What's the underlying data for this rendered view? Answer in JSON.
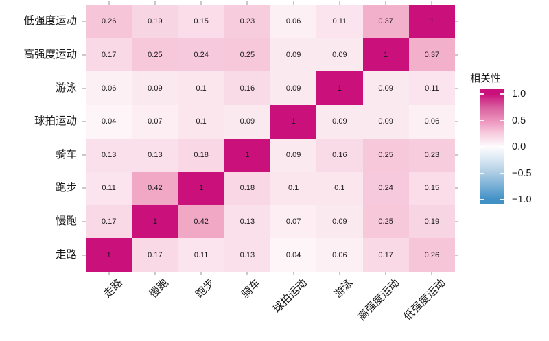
{
  "chart_data": {
    "type": "heatmap",
    "title": "",
    "x_categories": [
      "走路",
      "慢跑",
      "跑步",
      "骑车",
      "球拍运动",
      "游泳",
      "高强度运动",
      "低强度运动"
    ],
    "y_categories": [
      "低强度运动",
      "高强度运动",
      "游泳",
      "球拍运动",
      "骑车",
      "跑步",
      "慢跑",
      "走路"
    ],
    "matrix": [
      [
        0.26,
        0.19,
        0.15,
        0.23,
        0.06,
        0.11,
        0.37,
        1
      ],
      [
        0.17,
        0.25,
        0.24,
        0.25,
        0.09,
        0.09,
        1,
        0.37
      ],
      [
        0.06,
        0.09,
        0.1,
        0.16,
        0.09,
        1,
        0.09,
        0.11
      ],
      [
        0.04,
        0.07,
        0.1,
        0.09,
        1,
        0.09,
        0.09,
        0.06
      ],
      [
        0.13,
        0.13,
        0.18,
        1,
        0.09,
        0.16,
        0.25,
        0.23
      ],
      [
        0.11,
        0.42,
        1,
        0.18,
        0.1,
        0.1,
        0.24,
        0.15
      ],
      [
        0.17,
        1,
        0.42,
        0.13,
        0.07,
        0.09,
        0.25,
        0.19
      ],
      [
        1,
        0.17,
        0.11,
        0.13,
        0.04,
        0.06,
        0.17,
        0.26
      ]
    ],
    "value_domain": [
      -1,
      1
    ],
    "grid": false,
    "legend": {
      "title": "相关性",
      "position": "right",
      "tick_labels": [
        "1.0",
        "0.5",
        "0.0",
        "−0.5",
        "−1.0"
      ],
      "tick_values": [
        1.0,
        0.5,
        0.0,
        -0.5,
        -1.0
      ]
    },
    "colors": {
      "high": "#C9107B",
      "mid": "#FFFFFF",
      "low": "#4191C5",
      "cell_text": "#1A1A1A",
      "axis_text": "#1A1A1A",
      "tick_mark": "#C9C9C9",
      "fill_anchors": [
        {
          "v": 0.0,
          "c": "#FFFFFF"
        },
        {
          "v": 0.1,
          "c": "#FBE6EE"
        },
        {
          "v": 0.2,
          "c": "#F8D3E2"
        },
        {
          "v": 0.3,
          "c": "#F4BCD2"
        },
        {
          "v": 0.45,
          "c": "#EFA3C2"
        },
        {
          "v": 1.0,
          "c": "#C9107B"
        }
      ],
      "legend_gradient": [
        {
          "pos": 0,
          "c": "#C9107B"
        },
        {
          "pos": 4.8,
          "c": "#C9107B"
        },
        {
          "pos": 16,
          "c": "#D85D9E"
        },
        {
          "pos": 27.7,
          "c": "#EC93BC"
        },
        {
          "pos": 39,
          "c": "#F7CCDE"
        },
        {
          "pos": 50.6,
          "c": "#FEFCFD"
        },
        {
          "pos": 62,
          "c": "#D8E7F2"
        },
        {
          "pos": 73.5,
          "c": "#ABCBE3"
        },
        {
          "pos": 85,
          "c": "#77AED6"
        },
        {
          "pos": 96.4,
          "c": "#4191C5"
        },
        {
          "pos": 100,
          "c": "#4191C5"
        }
      ]
    }
  }
}
